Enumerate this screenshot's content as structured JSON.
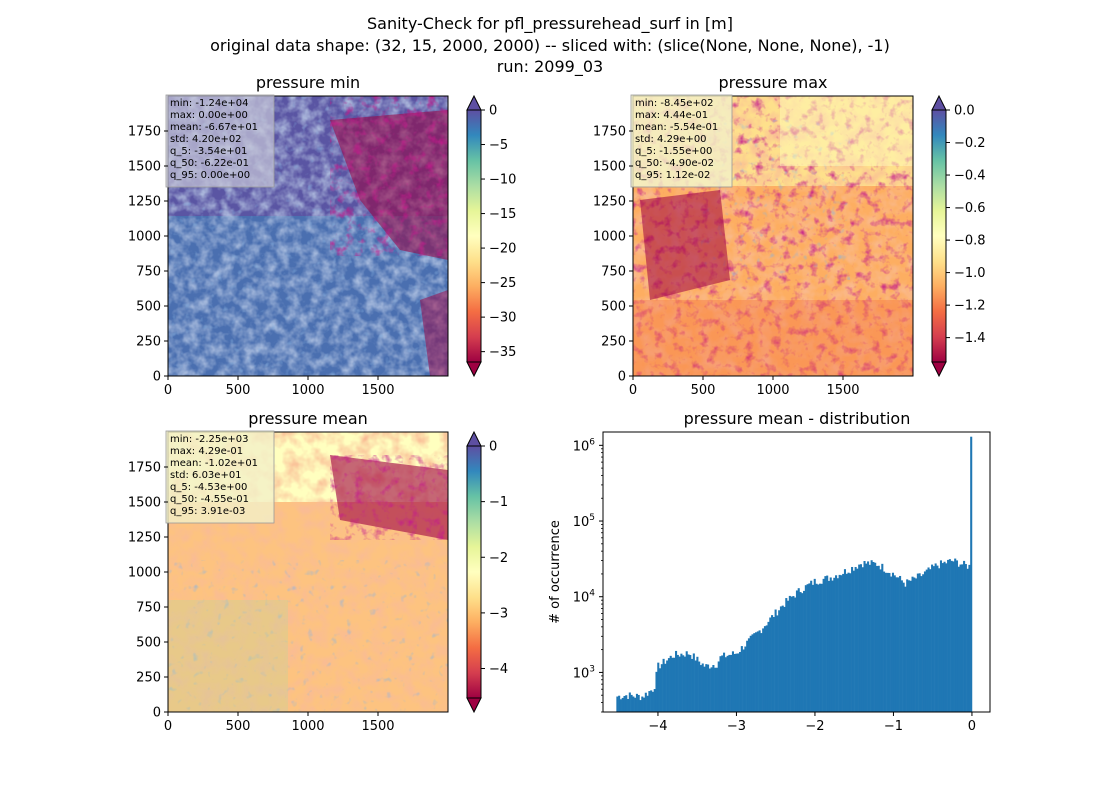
{
  "figure": {
    "title_lines": [
      "Sanity-Check for pfl_pressurehead_surf in [m]",
      "original data shape: (32, 15, 2000, 2000) -- sliced with: (slice(None, None, None), -1)",
      "run: 2099_03"
    ]
  },
  "chart_data": [
    {
      "type": "heatmap",
      "title": "pressure min",
      "colormap": "Spectral",
      "xlim": [
        0,
        2000
      ],
      "ylim": [
        0,
        2000
      ],
      "xticks": [
        0,
        500,
        1000,
        1500
      ],
      "yticks": [
        0,
        250,
        500,
        750,
        1000,
        1250,
        1500,
        1750
      ],
      "colorbar": {
        "range": [
          -36.5,
          0
        ],
        "ticks": [
          0,
          -5,
          -10,
          -15,
          -20,
          -25,
          -30,
          -35
        ],
        "tick_labels": [
          "0",
          "−5",
          "−10",
          "−15",
          "−20",
          "−25",
          "−30",
          "−35"
        ],
        "extend_top_color": "#5e4fa2",
        "extend_bottom_color": "#9e0142"
      },
      "stats": [
        "min: -1.24e+04",
        "max: 0.00e+00",
        "mean: -6.67e+01",
        "std: 4.20e+02",
        "q_5: -3.54e+01",
        "q_50: -6.22e-01",
        "q_95: 0.00e+00"
      ]
    },
    {
      "type": "heatmap",
      "title": "pressure max",
      "colormap": "Spectral",
      "xlim": [
        0,
        2000
      ],
      "ylim": [
        0,
        2000
      ],
      "xticks": [
        0,
        500,
        1000,
        1500
      ],
      "yticks": [
        0,
        250,
        500,
        750,
        1000,
        1250,
        1500,
        1750
      ],
      "colorbar": {
        "range": [
          -1.55,
          0.0
        ],
        "ticks": [
          0,
          -0.2,
          -0.4,
          -0.6,
          -0.8,
          -1.0,
          -1.2,
          -1.4
        ],
        "tick_labels": [
          "0.0",
          "−0.2",
          "−0.4",
          "−0.6",
          "−0.8",
          "−1.0",
          "−1.2",
          "−1.4"
        ],
        "extend_top_color": "#5e4fa2",
        "extend_bottom_color": "#9e0142"
      },
      "stats": [
        "min: -8.45e+02",
        "max: 4.44e-01",
        "mean: -5.54e-01",
        "std: 4.29e+00",
        "q_5: -1.55e+00",
        "q_50: -4.90e-02",
        "q_95: 1.12e-02"
      ]
    },
    {
      "type": "heatmap",
      "title": "pressure mean",
      "colormap": "Spectral",
      "xlim": [
        0,
        2000
      ],
      "ylim": [
        0,
        2000
      ],
      "xticks": [
        0,
        500,
        1000,
        1500
      ],
      "yticks": [
        0,
        250,
        500,
        750,
        1000,
        1250,
        1500,
        1750
      ],
      "colorbar": {
        "range": [
          -4.53,
          0
        ],
        "ticks": [
          0,
          -1,
          -2,
          -3,
          -4
        ],
        "tick_labels": [
          "0",
          "−1",
          "−2",
          "−3",
          "−4"
        ],
        "extend_top_color": "#5e4fa2",
        "extend_bottom_color": "#9e0142"
      },
      "stats": [
        "min: -2.25e+03",
        "max: 4.29e-01",
        "mean: -1.02e+01",
        "std: 6.03e+01",
        "q_5: -4.53e+00",
        "q_50: -4.55e-01",
        "q_95: 3.91e-03"
      ]
    },
    {
      "type": "bar",
      "title": "pressure mean - distribution",
      "ylabel": "# of occurrence",
      "xlabel": "",
      "yscale": "log",
      "xlim": [
        -4.7,
        0.23
      ],
      "ylim": [
        300,
        1500000
      ],
      "xticks": [
        -4,
        -3,
        -2,
        -1,
        0
      ],
      "xtick_labels": [
        "−4",
        "−3",
        "−2",
        "−1",
        "0"
      ],
      "ytick_exponents": [
        3,
        4,
        5,
        6
      ],
      "bar_color": "#1f77b4",
      "bin_range": [
        -4.53,
        0.0
      ],
      "bin_count": 200,
      "profile": [
        [
          -4.53,
          480
        ],
        [
          -4.4,
          500
        ],
        [
          -4.2,
          480
        ],
        [
          -4.05,
          620
        ],
        [
          -4.0,
          1200
        ],
        [
          -3.8,
          1700
        ],
        [
          -3.6,
          1800
        ],
        [
          -3.4,
          1200
        ],
        [
          -3.25,
          1300
        ],
        [
          -3.2,
          1600
        ],
        [
          -3.0,
          1800
        ],
        [
          -2.7,
          3600
        ],
        [
          -2.4,
          8000
        ],
        [
          -2.2,
          12000
        ],
        [
          -2.0,
          16000
        ],
        [
          -1.8,
          18000
        ],
        [
          -1.6,
          22000
        ],
        [
          -1.4,
          28000
        ],
        [
          -1.2,
          27000
        ],
        [
          -1.0,
          20000
        ],
        [
          -0.85,
          15000
        ],
        [
          -0.65,
          19000
        ],
        [
          -0.45,
          26000
        ],
        [
          -0.25,
          30000
        ],
        [
          -0.08,
          26000
        ],
        [
          -0.02,
          25000
        ]
      ],
      "spike": {
        "x": -0.01,
        "value": 1300000
      }
    }
  ]
}
